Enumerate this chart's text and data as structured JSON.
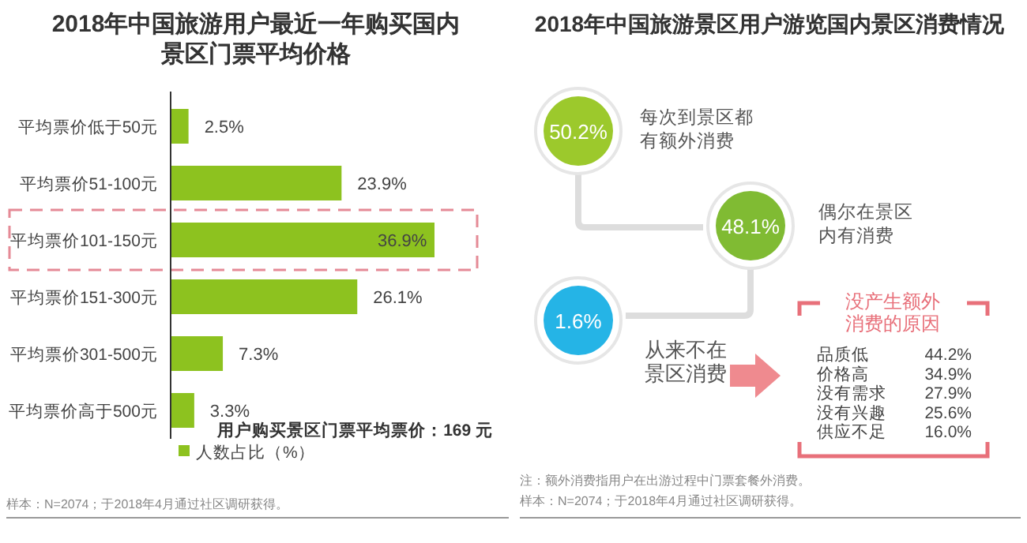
{
  "chart_data": [
    {
      "type": "bar",
      "orientation": "horizontal",
      "title": "2018年中国旅游用户最近一年购买国内景区门票平均价格",
      "categories": [
        "平均票价低于50元",
        "平均票价51-100元",
        "平均票价101-150元",
        "平均票价151-300元",
        "平均票价301-500元",
        "平均票价高于500元"
      ],
      "series": [
        {
          "name": "人数占比（%）",
          "color": "#8dc21f",
          "values": [
            2.5,
            23.9,
            36.9,
            26.1,
            7.3,
            3.3
          ],
          "value_labels": [
            "2.5%",
            "23.9%",
            "36.9%",
            "26.1%",
            "7.3%",
            "3.3%"
          ]
        }
      ],
      "legend": "bottom",
      "annotations": [
        "用户购买景区门票平均票价：169 元",
        "样本：N=2074；于2018年4月通过社区调研获得。"
      ]
    },
    {
      "type": "other",
      "title": "2018年中国旅游景区用户游览国内景区消费情况",
      "categories": [
        "每次到景区都有额外消费",
        "偶尔在景区内有消费",
        "从来不在景区消费"
      ],
      "values": [
        50.2,
        48.1,
        1.6
      ],
      "value_labels": [
        "50.2%",
        "48.1%",
        "1.6%"
      ],
      "colors": [
        "#9cc92c",
        "#80bb33",
        "#25b4e6"
      ],
      "annotations": [
        "注：额外消费指用户在出游过程中门票套餐外消费。",
        "样本：N=2074；于2018年4月通过社区调研获得。"
      ]
    },
    {
      "type": "other",
      "title": "没产生额外消费的原因",
      "categories": [
        "品质低",
        "价格高",
        "没有需求",
        "没有兴趣",
        "供应不足"
      ],
      "values": [
        44.2,
        34.9,
        27.9,
        25.6,
        16.0
      ],
      "value_labels": [
        "44.2%",
        "34.9%",
        "27.9%",
        "25.6%",
        "16.0%"
      ],
      "color": "#e8707a"
    }
  ]
}
